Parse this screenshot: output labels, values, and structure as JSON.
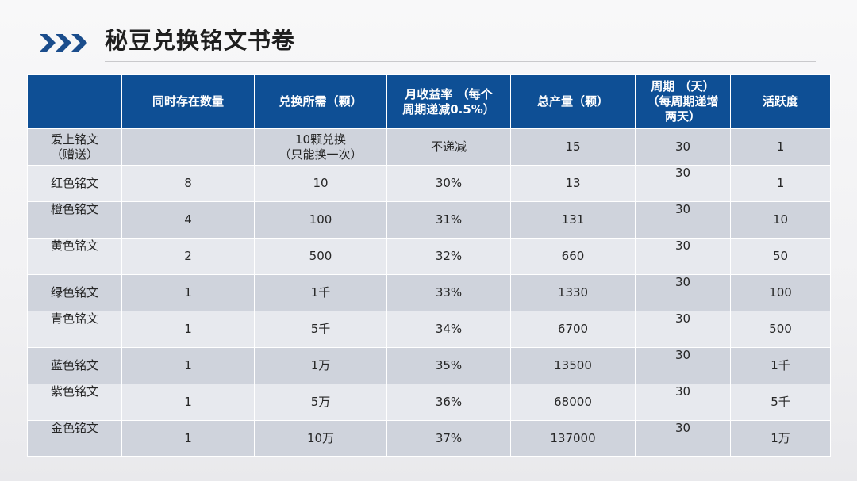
{
  "title": "秘豆兑换铭文书卷",
  "table": {
    "headers": [
      "",
      "同时存在数量",
      "兑换所需（颗）",
      [
        "月收益率 （每个",
        "周期递减0.5%）"
      ],
      "总产量（颗）",
      [
        "周期 （天）",
        "（每周期递增",
        "两天）"
      ],
      "活跃度"
    ],
    "rows": [
      {
        "name": [
          "爱上铭文",
          "（赠送）"
        ],
        "count": "",
        "cost": [
          "10颗兑换",
          "（只能换一次）"
        ],
        "rate": "不递减",
        "total": "15",
        "cycle": "30",
        "activity": "1"
      },
      {
        "name": "红色铭文",
        "count": "8",
        "cost": "10",
        "rate": "30%",
        "total": "13",
        "cycle": "30",
        "activity": "1"
      },
      {
        "name": "橙色铭文",
        "count": "4",
        "cost": "100",
        "rate": "31%",
        "total": "131",
        "cycle": "30",
        "activity": "10"
      },
      {
        "name": "黄色铭文",
        "count": "2",
        "cost": "500",
        "rate": "32%",
        "total": "660",
        "cycle": "30",
        "activity": "50"
      },
      {
        "name": "绿色铭文",
        "count": "1",
        "cost": "1千",
        "rate": "33%",
        "total": "1330",
        "cycle": "30",
        "activity": "100"
      },
      {
        "name": "青色铭文",
        "count": "1",
        "cost": "5千",
        "rate": "34%",
        "total": "6700",
        "cycle": "30",
        "activity": "500"
      },
      {
        "name": "蓝色铭文",
        "count": "1",
        "cost": "1万",
        "rate": "35%",
        "total": "13500",
        "cycle": "30",
        "activity": "1千"
      },
      {
        "name": "紫色铭文",
        "count": "1",
        "cost": "5万",
        "rate": "36%",
        "total": "68000",
        "cycle": "30",
        "activity": "5千"
      },
      {
        "name": "金色铭文",
        "count": "1",
        "cost": "10万",
        "rate": "37%",
        "total": "137000",
        "cycle": "30",
        "activity": "1万"
      }
    ]
  },
  "colors": {
    "header_bg": "#0e4f95",
    "row_odd": "#cfd3dc",
    "row_even": "#e7e9ee",
    "icon": "#1b4d8c"
  },
  "icons": {
    "title": "triple-chevron-right-icon"
  }
}
